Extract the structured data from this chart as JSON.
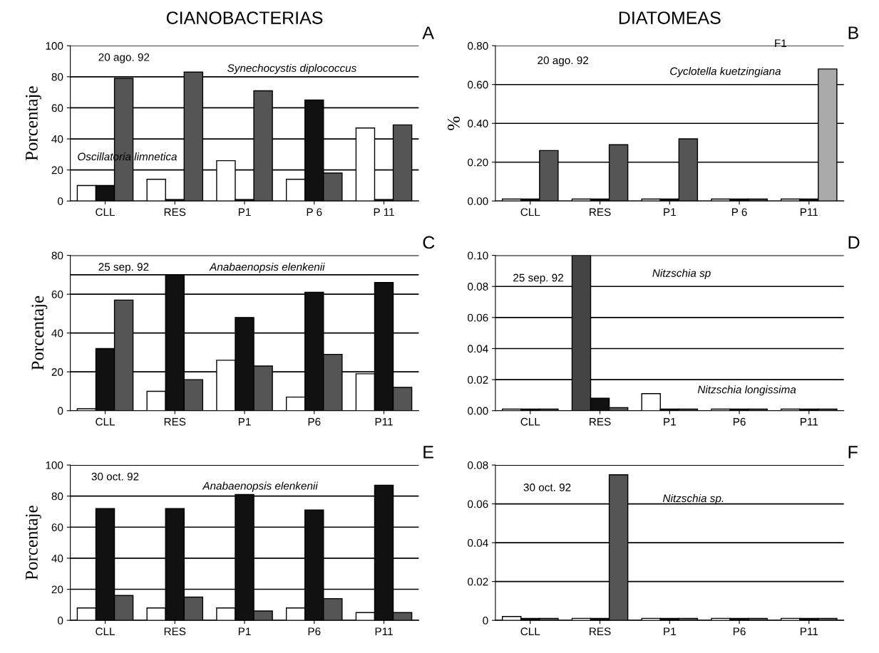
{
  "chart_data": [
    {
      "type": "bar",
      "title": "CIANOBACTERIAS",
      "ylabel": "Porcentaje",
      "categories": [
        "CLL",
        "RES",
        "P1",
        "P 6",
        "P 11"
      ],
      "ylim": [
        0,
        100
      ],
      "yticks": [
        0,
        20,
        40,
        60,
        80,
        100
      ],
      "grid": "y",
      "series": [
        {
          "color": "#ffffff",
          "values": [
            10,
            14,
            26,
            14,
            47
          ]
        },
        {
          "color": "#111111",
          "values": [
            10,
            1,
            1,
            65,
            1
          ]
        },
        {
          "color": "#555555",
          "values": [
            79,
            83,
            71,
            18,
            49
          ]
        }
      ],
      "annotations": [
        "20 ago. 92",
        "Synechocystis diplococcus",
        "Oscillatoria limnetica",
        "A"
      ]
    },
    {
      "type": "bar",
      "title": "DIATOMEAS",
      "ylabel": "%",
      "categories": [
        "CLL",
        "RES",
        "P1",
        "P 6",
        "P11"
      ],
      "ylim": [
        0,
        0.8
      ],
      "yticks": [
        {
          "value": 0,
          "label": "0.00"
        },
        {
          "value": 0.2,
          "label": "0.20"
        },
        {
          "value": 0.4,
          "label": "0.40"
        },
        {
          "value": 0.6,
          "label": "0.60"
        },
        {
          "value": 0.8,
          "label": "0.80"
        }
      ],
      "grid": "y",
      "series": [
        {
          "color": "#ffffff",
          "values": [
            0.01,
            0.01,
            0.01,
            0.01,
            0.01
          ]
        },
        {
          "color": "#111111",
          "values": [
            0.01,
            0.01,
            0.01,
            0.01,
            0.01
          ]
        },
        {
          "color": "#555555",
          "colors": [
            "#555555",
            "#555555",
            "#555555",
            "#555555",
            "#aaaaaa"
          ],
          "values": [
            0.26,
            0.29,
            0.32,
            0.01,
            0.68
          ]
        }
      ],
      "annotations": [
        "20 ago. 92",
        "Cyclotella kuetzingiana",
        "F1",
        "B"
      ]
    },
    {
      "type": "bar",
      "ylabel": "Porcentaje",
      "categories": [
        "CLL",
        "RES",
        "P1",
        "P6",
        "P11"
      ],
      "ylim": [
        0,
        80
      ],
      "yticks": [
        0,
        20,
        40,
        60,
        80
      ],
      "grid": "y",
      "ref_lines": [
        {
          "axis": "y",
          "value": 70
        }
      ],
      "series": [
        {
          "color": "#ffffff",
          "values": [
            1,
            10,
            26,
            7,
            19
          ]
        },
        {
          "color": "#111111",
          "values": [
            32,
            70,
            48,
            61,
            66
          ]
        },
        {
          "color": "#555555",
          "values": [
            57,
            16,
            23,
            29,
            12
          ]
        }
      ],
      "annotations": [
        "25 sep. 92",
        "Anabaenopsis elenkenii",
        "C"
      ]
    },
    {
      "type": "bar",
      "categories": [
        "CLL",
        "RES",
        "P1",
        "P6",
        "P11"
      ],
      "ylim": [
        0,
        0.1
      ],
      "yticks": [
        {
          "value": 0,
          "label": "0.00"
        },
        {
          "value": 0.02,
          "label": "0.02"
        },
        {
          "value": 0.04,
          "label": "0.04"
        },
        {
          "value": 0.06,
          "label": "0.06"
        },
        {
          "value": 0.08,
          "label": "0.08"
        },
        {
          "value": 0.1,
          "label": "0.10"
        }
      ],
      "grid": "y",
      "series": [
        {
          "color": "#ffffff",
          "colors": [
            "#ffffff",
            "#444444",
            "#ffffff",
            "#ffffff",
            "#ffffff"
          ],
          "values": [
            0.001,
            0.1,
            0.011,
            0.001,
            0.001
          ]
        },
        {
          "color": "#111111",
          "values": [
            0.001,
            0.008,
            0.001,
            0.001,
            0.001
          ]
        },
        {
          "color": "#555555",
          "values": [
            0.001,
            0.002,
            0.001,
            0.001,
            0.001
          ]
        }
      ],
      "annotations": [
        "25 sep. 92",
        "Nitzschia sp",
        "Nitzschia longissima",
        "D"
      ]
    },
    {
      "type": "bar",
      "ylabel": "Porcentaje",
      "categories": [
        "CLL",
        "RES",
        "P1",
        "P6",
        "P11"
      ],
      "ylim": [
        0,
        100
      ],
      "yticks": [
        0,
        20,
        40,
        60,
        80,
        100
      ],
      "grid": "y",
      "series": [
        {
          "color": "#ffffff",
          "values": [
            8,
            8,
            8,
            8,
            5
          ]
        },
        {
          "color": "#111111",
          "values": [
            72,
            72,
            81,
            71,
            87
          ]
        },
        {
          "color": "#555555",
          "values": [
            16,
            15,
            6,
            14,
            5
          ]
        }
      ],
      "annotations": [
        "30 oct. 92",
        "Anabaenopsis elenkenii",
        "E"
      ]
    },
    {
      "type": "bar",
      "categories": [
        "CLL",
        "RES",
        "P1",
        "P6",
        "P11"
      ],
      "ylim": [
        0,
        0.08
      ],
      "yticks": [
        {
          "value": 0,
          "label": "0"
        },
        {
          "value": 0.02,
          "label": "0.02"
        },
        {
          "value": 0.04,
          "label": "0.04"
        },
        {
          "value": 0.06,
          "label": "0.06"
        },
        {
          "value": 0.08,
          "label": "0.08"
        }
      ],
      "grid": "y",
      "series": [
        {
          "color": "#ffffff",
          "values": [
            0.002,
            0.001,
            0.001,
            0.001,
            0.001
          ]
        },
        {
          "color": "#111111",
          "values": [
            0.001,
            0.001,
            0.001,
            0.001,
            0.001
          ]
        },
        {
          "color": "#555555",
          "values": [
            0.001,
            0.075,
            0.001,
            0.001,
            0.001
          ]
        }
      ],
      "annotations": [
        "30 oct. 92",
        "Nitzschia sp.",
        "F"
      ]
    }
  ]
}
